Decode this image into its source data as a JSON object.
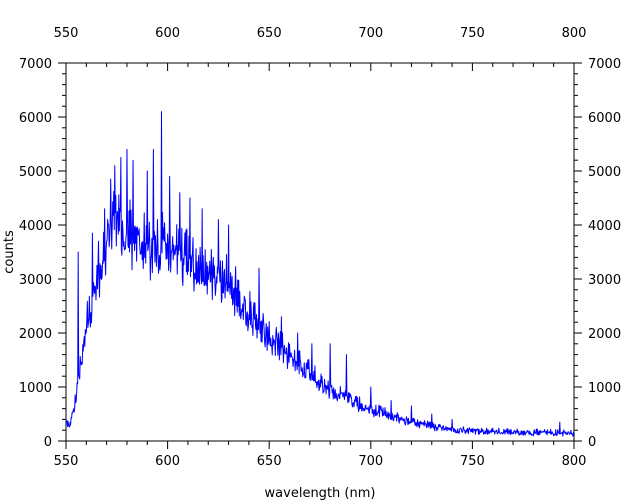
{
  "chart_data": {
    "type": "line",
    "xlabel": "wavelength (nm)",
    "ylabel": "counts",
    "xlim": [
      550,
      800
    ],
    "ylim": [
      0,
      7000
    ],
    "x_ticks": [
      "550",
      "600",
      "650",
      "700",
      "750",
      "800"
    ],
    "y_ticks": [
      "0",
      "1000",
      "2000",
      "3000",
      "4000",
      "5000",
      "6000",
      "7000"
    ],
    "mirror_axes": true,
    "grid": false,
    "legend": "none",
    "line_color": "#0000ff",
    "series": [
      {
        "x": [
          550,
          552,
          554,
          556,
          558,
          560,
          562,
          564,
          566,
          568,
          570,
          572,
          574,
          576,
          578,
          580,
          582,
          584,
          586,
          588,
          590,
          592,
          594,
          596,
          598,
          600,
          602,
          604,
          606,
          608,
          610,
          612,
          614,
          616,
          618,
          620,
          622,
          624,
          626,
          628,
          630,
          632,
          634,
          636,
          638,
          640,
          645,
          650,
          655,
          660,
          665,
          670,
          675,
          680,
          685,
          690,
          695,
          700,
          705,
          710,
          715,
          720,
          725,
          730,
          735,
          740,
          745,
          750,
          755,
          760,
          765,
          770,
          775,
          780,
          785,
          790,
          795,
          800
        ],
        "values": [
          350,
          300,
          600,
          1100,
          1600,
          2200,
          2400,
          2800,
          3100,
          3300,
          3700,
          4200,
          4100,
          4000,
          3900,
          3800,
          3750,
          3700,
          3650,
          3600,
          3550,
          3500,
          3500,
          3550,
          3600,
          3550,
          3500,
          3450,
          3400,
          3350,
          3300,
          3250,
          3250,
          3200,
          3150,
          3100,
          3050,
          3050,
          3000,
          2950,
          2900,
          2800,
          2700,
          2550,
          2450,
          2350,
          2150,
          1950,
          1750,
          1550,
          1400,
          1250,
          1100,
          950,
          850,
          750,
          650,
          580,
          520,
          460,
          400,
          340,
          300,
          270,
          240,
          220,
          200,
          190,
          180,
          170,
          165,
          160,
          160,
          150,
          150,
          150,
          140,
          140
        ],
        "spikes": [
          {
            "x": 556,
            "y": 3500
          },
          {
            "x": 563,
            "y": 3850
          },
          {
            "x": 566,
            "y": 3700
          },
          {
            "x": 569,
            "y": 4300
          },
          {
            "x": 574,
            "y": 5100
          },
          {
            "x": 577,
            "y": 5250
          },
          {
            "x": 580,
            "y": 5400
          },
          {
            "x": 583,
            "y": 5200
          },
          {
            "x": 590,
            "y": 5000
          },
          {
            "x": 593,
            "y": 5400
          },
          {
            "x": 597,
            "y": 6100
          },
          {
            "x": 601,
            "y": 4900
          },
          {
            "x": 606,
            "y": 4600
          },
          {
            "x": 611,
            "y": 4500
          },
          {
            "x": 617,
            "y": 4300
          },
          {
            "x": 625,
            "y": 4100
          },
          {
            "x": 630,
            "y": 4000
          },
          {
            "x": 645,
            "y": 3200
          },
          {
            "x": 656,
            "y": 2300
          },
          {
            "x": 664,
            "y": 2000
          },
          {
            "x": 671,
            "y": 1800
          },
          {
            "x": 680,
            "y": 1800
          },
          {
            "x": 688,
            "y": 1600
          },
          {
            "x": 700,
            "y": 1000
          },
          {
            "x": 710,
            "y": 750
          },
          {
            "x": 720,
            "y": 650
          },
          {
            "x": 730,
            "y": 500
          },
          {
            "x": 740,
            "y": 400
          },
          {
            "x": 793,
            "y": 350
          }
        ]
      }
    ]
  }
}
